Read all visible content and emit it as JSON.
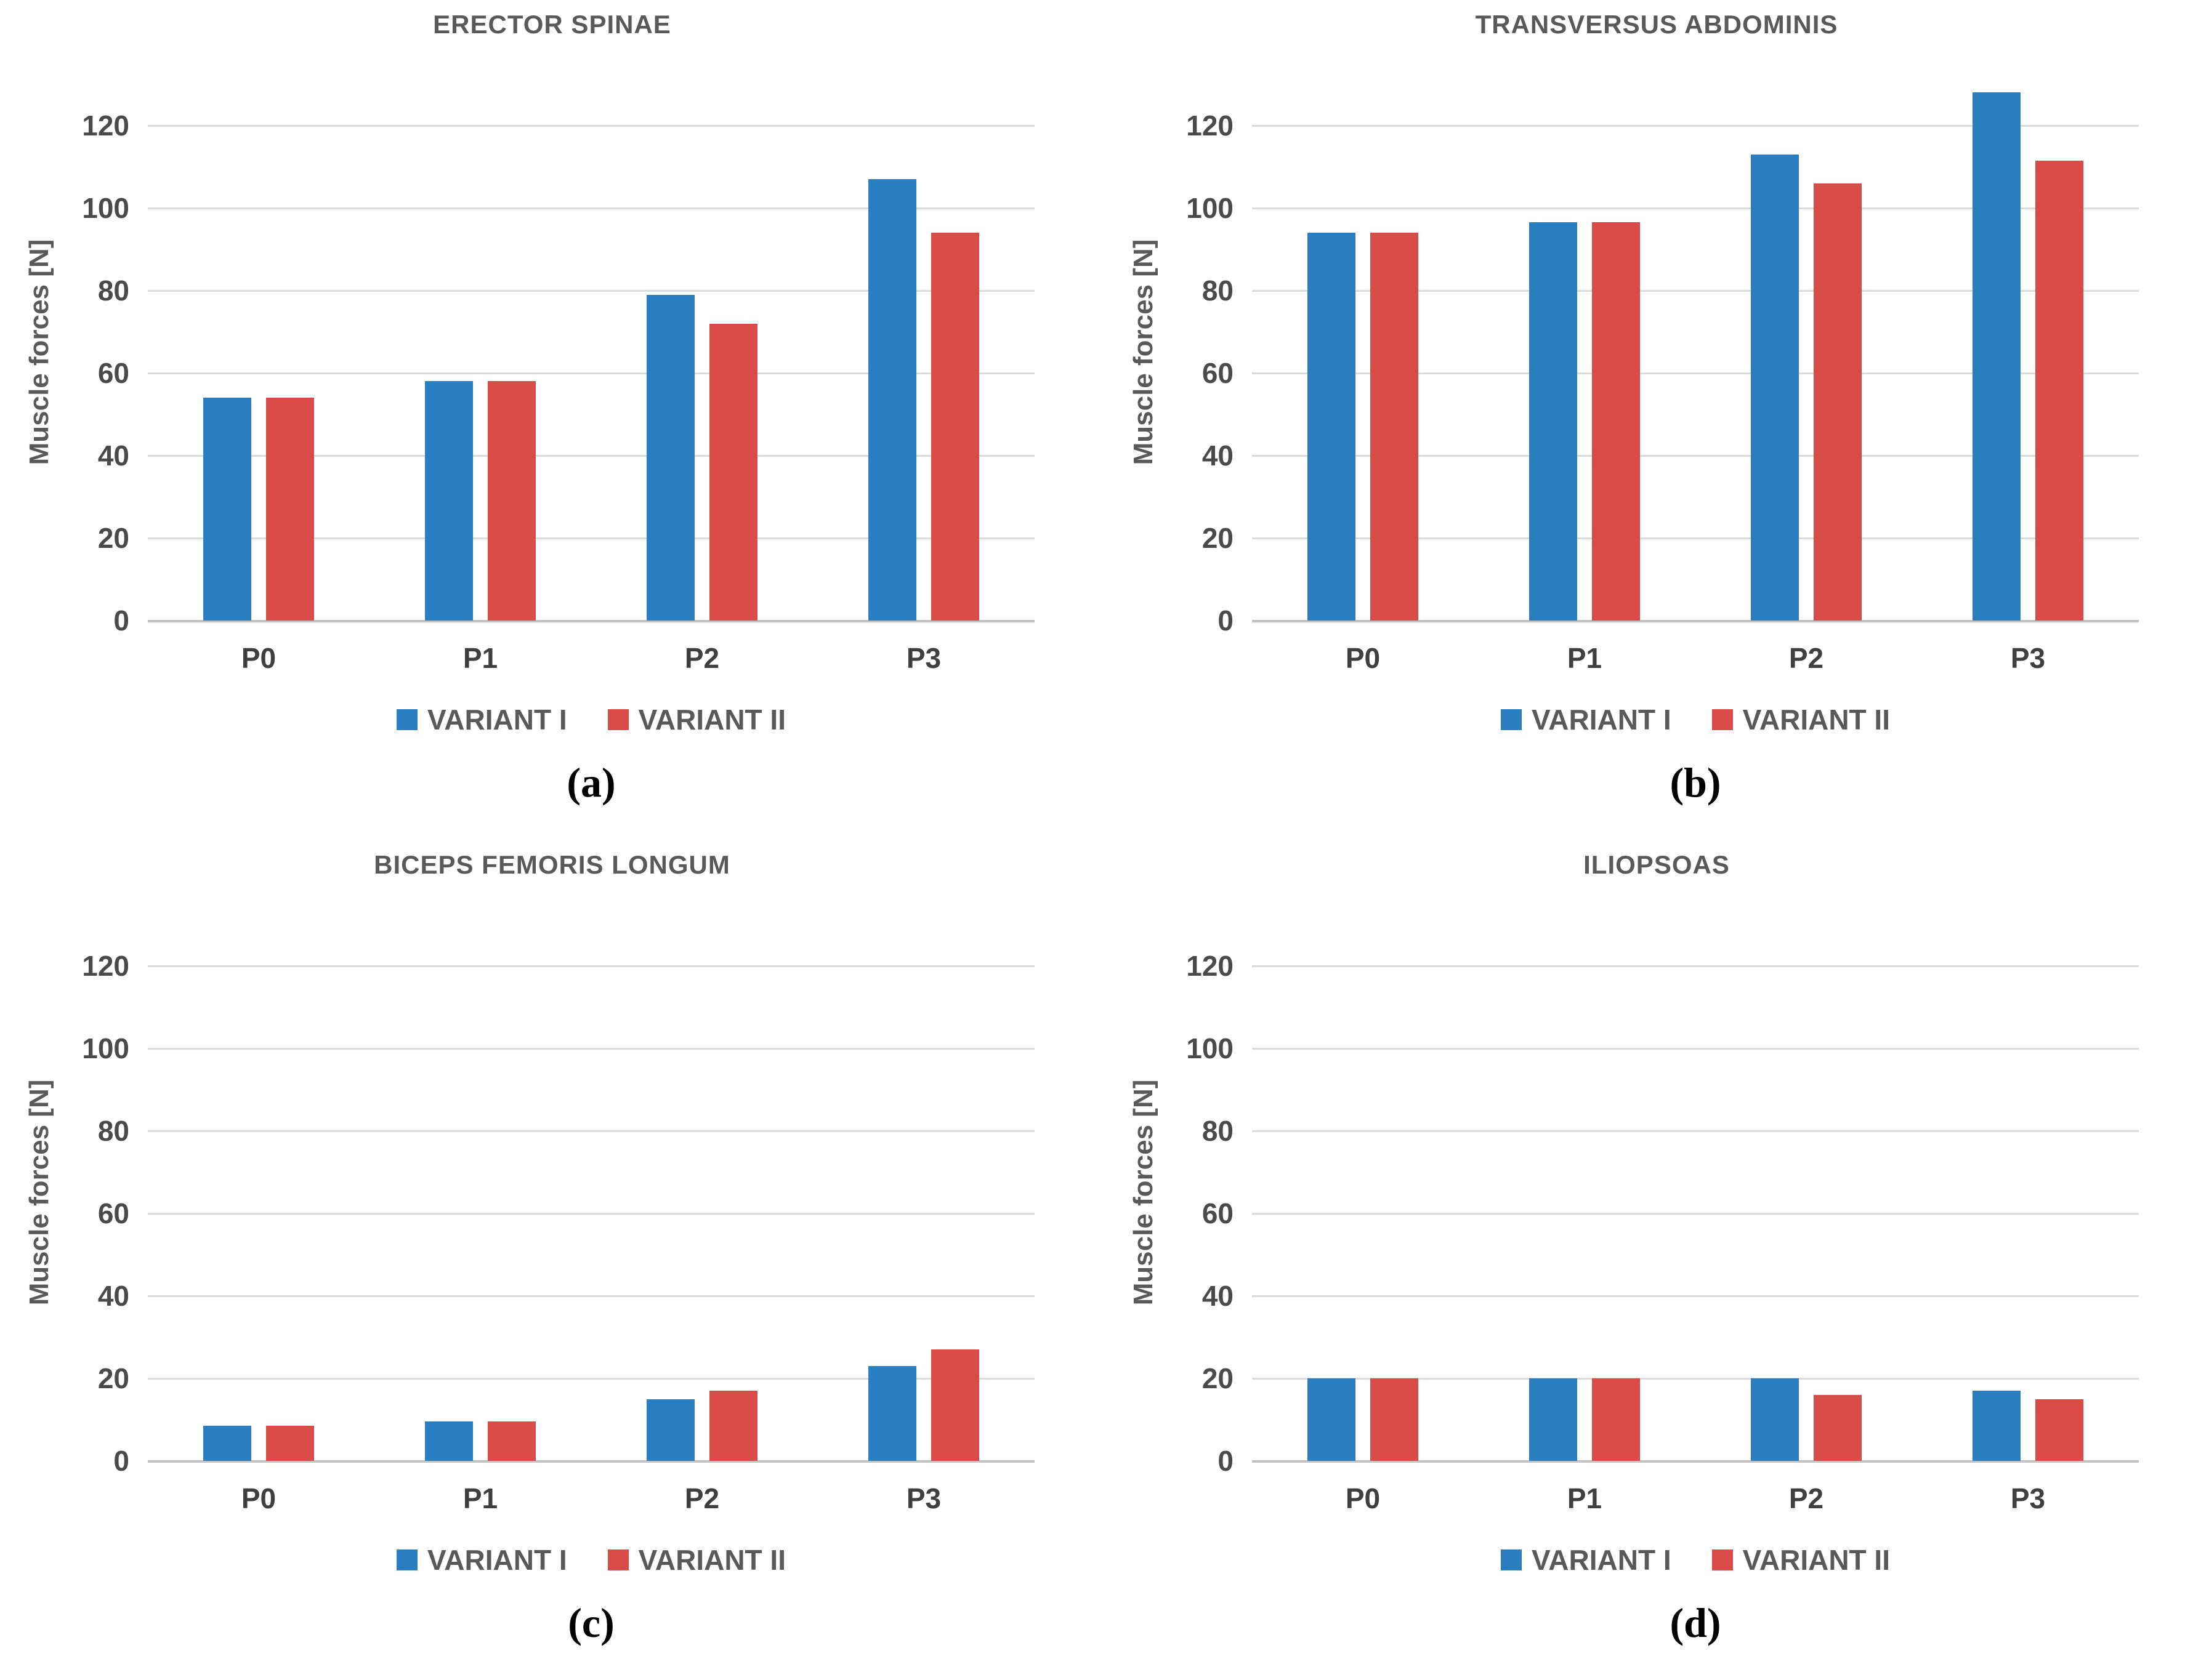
{
  "figure": {
    "ylabel": "Muscle forces [N]",
    "legend": [
      {
        "label": "VARIANT I",
        "color": "#2a7ec0"
      },
      {
        "label": "VARIANT II",
        "color": "#d94b47"
      }
    ],
    "colors": {
      "variant1": "#2a7ec0",
      "variant2": "#d94b47",
      "title_text": "#595959",
      "tick_text": "#4a4a4a",
      "xlabel_text": "#3f3f3f",
      "legend_text": "#595959",
      "gridline": "#dbdbdb",
      "zero_line": "#c2c2c2",
      "background": "#ffffff"
    }
  },
  "chart_data": [
    {
      "id": "a",
      "type": "bar",
      "title": "ERECTOR SPINAE",
      "caption": "(a)",
      "ylabel": "Muscle forces [N]",
      "categories": [
        "P0",
        "P1",
        "P2",
        "P3"
      ],
      "series": [
        {
          "name": "VARIANT I",
          "color": "#2a7ec0",
          "values": [
            54,
            58,
            79,
            107
          ]
        },
        {
          "name": "VARIANT II",
          "color": "#d94b47",
          "values": [
            54,
            58,
            72,
            94
          ]
        }
      ],
      "yticks": [
        0,
        20,
        40,
        60,
        80,
        100,
        120
      ],
      "ylim": [
        0,
        130
      ],
      "grid": true,
      "legend_position": "bottom"
    },
    {
      "id": "b",
      "type": "bar",
      "title": "TRANSVERSUS ABDOMINIS",
      "caption": "(b)",
      "ylabel": "Muscle forces [N]",
      "categories": [
        "P0",
        "P1",
        "P2",
        "P3"
      ],
      "series": [
        {
          "name": "VARIANT I",
          "color": "#2a7ec0",
          "values": [
            94,
            96.5,
            113,
            128
          ]
        },
        {
          "name": "VARIANT II",
          "color": "#d94b47",
          "values": [
            94,
            96.5,
            106,
            111.5
          ]
        }
      ],
      "yticks": [
        0,
        20,
        40,
        60,
        80,
        100,
        120
      ],
      "ylim": [
        0,
        130
      ],
      "grid": true,
      "legend_position": "bottom"
    },
    {
      "id": "c",
      "type": "bar",
      "title": "BICEPS FEMORIS LONGUM",
      "caption": "(c)",
      "ylabel": "Muscle forces [N]",
      "categories": [
        "P0",
        "P1",
        "P2",
        "P3"
      ],
      "series": [
        {
          "name": "VARIANT I",
          "color": "#2a7ec0",
          "values": [
            8.5,
            9.5,
            15,
            23
          ]
        },
        {
          "name": "VARIANT II",
          "color": "#d94b47",
          "values": [
            8.5,
            9.5,
            17,
            27
          ]
        }
      ],
      "yticks": [
        0,
        20,
        40,
        60,
        80,
        100,
        120
      ],
      "ylim": [
        0,
        130
      ],
      "grid": true,
      "legend_position": "bottom"
    },
    {
      "id": "d",
      "type": "bar",
      "title": "ILIOPSOAS",
      "caption": "(d)",
      "ylabel": "Muscle forces [N]",
      "categories": [
        "P0",
        "P1",
        "P2",
        "P3"
      ],
      "series": [
        {
          "name": "VARIANT I",
          "color": "#2a7ec0",
          "values": [
            20,
            20,
            20,
            17
          ]
        },
        {
          "name": "VARIANT II",
          "color": "#d94b47",
          "values": [
            20,
            20,
            16,
            15
          ]
        }
      ],
      "yticks": [
        0,
        20,
        40,
        60,
        80,
        100,
        120
      ],
      "ylim": [
        0,
        130
      ],
      "grid": true,
      "legend_position": "bottom"
    }
  ]
}
